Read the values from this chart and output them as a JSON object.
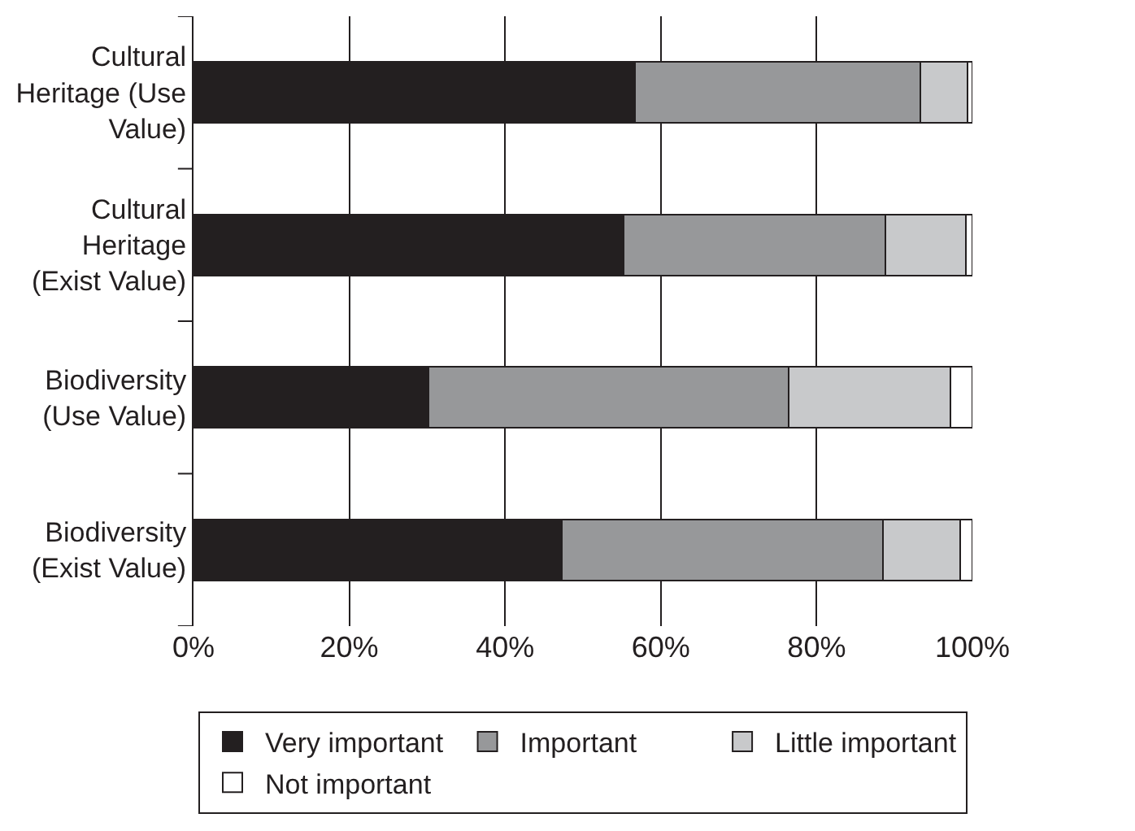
{
  "chart_data": {
    "type": "bar",
    "orientation": "horizontal",
    "stacked": true,
    "categories": [
      "Cultural Heritage (Use Value)",
      "Cultural Heritage (Exist Value)",
      "Biodiversity (Use Value)",
      "Biodiversity (Exist Value)"
    ],
    "series": [
      {
        "name": "Very important",
        "color": "#231f20",
        "values": [
          56.7,
          55.2,
          30.2,
          47.3
        ]
      },
      {
        "name": "Important",
        "color": "#97989a",
        "values": [
          36.6,
          33.6,
          46.2,
          41.2
        ]
      },
      {
        "name": "Little important",
        "color": "#c8c9cb",
        "values": [
          6.1,
          10.4,
          20.8,
          9.9
        ]
      },
      {
        "name": "Not important",
        "color": "#ffffff",
        "values": [
          0.6,
          0.8,
          2.8,
          1.6
        ]
      }
    ],
    "xlim": [
      0,
      100
    ],
    "xticks": [
      {
        "value": 0,
        "label": "0%"
      },
      {
        "value": 20,
        "label": "20%"
      },
      {
        "value": 40,
        "label": "40%"
      },
      {
        "value": 60,
        "label": "60%"
      },
      {
        "value": 80,
        "label": "80%"
      },
      {
        "value": 100,
        "label": "100%"
      }
    ],
    "grid": "x",
    "legend": "bottom"
  }
}
